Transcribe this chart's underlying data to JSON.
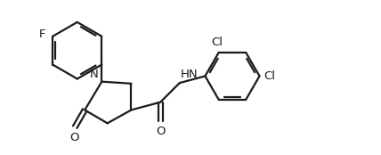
{
  "bg_color": "#ffffff",
  "line_color": "#1a1a1a",
  "line_width": 1.6,
  "font_size": 9.5,
  "figsize": [
    4.28,
    1.74
  ],
  "dpi": 100,
  "xlim": [
    0,
    10
  ],
  "ylim": [
    0,
    4.07
  ]
}
